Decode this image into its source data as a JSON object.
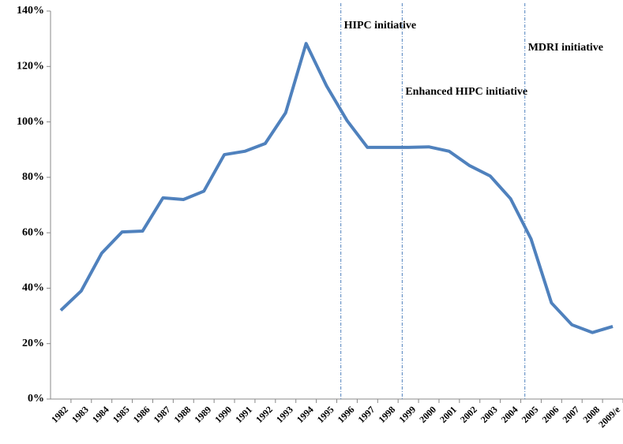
{
  "chart_data": {
    "type": "line",
    "categories": [
      "1982",
      "1983",
      "1984",
      "1985",
      "1986",
      "1987",
      "1988",
      "1989",
      "1990",
      "1991",
      "1992",
      "1993",
      "1994",
      "1995",
      "1996",
      "1997",
      "1998",
      "1999",
      "2000",
      "2001",
      "2002",
      "2003",
      "2004",
      "2005",
      "2006",
      "2007",
      "2008",
      "2009/e"
    ],
    "series": [
      {
        "color": "#4f81bd",
        "values": [
          32,
          39,
          52.6,
          60.3,
          60.6,
          72.6,
          72,
          75,
          88.2,
          89.4,
          92.2,
          103.3,
          128.3,
          113,
          100.5,
          90.8,
          90.8,
          90.8,
          91,
          89.4,
          84.2,
          80.5,
          72.3,
          57.8,
          34.7,
          26.8,
          24,
          26.2
        ]
      }
    ],
    "ylim": [
      0,
      140
    ],
    "yticks": [
      {
        "value": 0,
        "label": "0%"
      },
      {
        "value": 20,
        "label": "20%"
      },
      {
        "value": 40,
        "label": "40%"
      },
      {
        "value": 60,
        "label": "60%"
      },
      {
        "value": 80,
        "label": "80%"
      },
      {
        "value": 100,
        "label": "100%"
      },
      {
        "value": 120,
        "label": "120%"
      },
      {
        "value": 140,
        "label": "140%"
      }
    ],
    "annotations": [
      {
        "text": "HIPC initiative",
        "x": "1996"
      },
      {
        "text": "Enhanced HIPC initiative",
        "x": "1999"
      },
      {
        "text": "MDRI initiative",
        "x": "2005"
      }
    ]
  }
}
